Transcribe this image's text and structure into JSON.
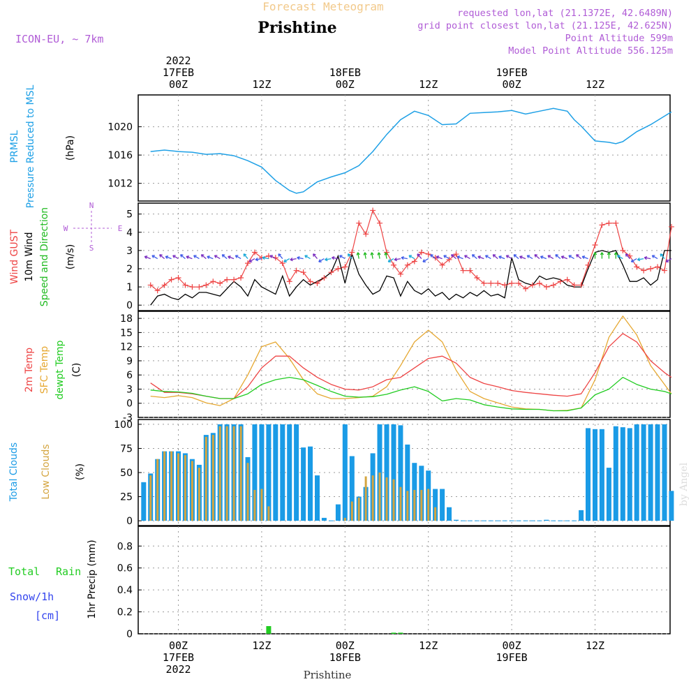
{
  "header": {
    "subtitle": "Forecast Meteogram",
    "title": "Prishtine",
    "model": "ICON-EU, ~ 7km",
    "requested": "requested lon,lat (21.1372E, 42.6489N)",
    "grid_point": "grid point closest lon,lat (21.125E, 42.625N)",
    "point_alt": "Point Altitude 599m",
    "model_alt": "Model Point Altitude 556.125m",
    "watermark": "by Angel"
  },
  "time_axis": {
    "top_labels": [
      {
        "h": 0,
        "lines": [
          "2022",
          "17FEB",
          "00Z"
        ]
      },
      {
        "h": 12,
        "lines": [
          "12Z"
        ]
      },
      {
        "h": 24,
        "lines": [
          "18FEB",
          "00Z"
        ]
      },
      {
        "h": 36,
        "lines": [
          "12Z"
        ]
      },
      {
        "h": 48,
        "lines": [
          "19FEB",
          "00Z"
        ]
      },
      {
        "h": 60,
        "lines": [
          "12Z"
        ]
      }
    ],
    "bottom_labels": [
      {
        "h": 0,
        "lines": [
          "00Z",
          "17FEB",
          "2022"
        ]
      },
      {
        "h": 12,
        "lines": [
          "12Z"
        ]
      },
      {
        "h": 24,
        "lines": [
          "00Z",
          "18FEB"
        ]
      },
      {
        "h": 36,
        "lines": [
          "12Z"
        ]
      },
      {
        "h": 48,
        "lines": [
          "00Z",
          "19FEB"
        ]
      },
      {
        "h": 60,
        "lines": [
          "12Z"
        ]
      }
    ],
    "footer": "Prishtine"
  },
  "colors": {
    "pressure": "#1ea0e6",
    "gust": "#ee4444",
    "wind": "#000000",
    "direction": "#22bb22",
    "temp2m": "#ee4444",
    "sfc": "#e6a832",
    "dewpt": "#22cc22",
    "total_clouds": "#1a9be6",
    "low_clouds": "#d4a540",
    "rain": "#22cc22",
    "snow": "#3344ee",
    "axis_purple": "#b05cd6"
  },
  "panels": {
    "pressure": {
      "labels": [
        "PRMSL",
        "Pressure Reduced to MSL"
      ],
      "unit": "(hPa)"
    },
    "wind": {
      "labels": [
        "Wind GUST",
        "10m Wind",
        "Speed and Direction"
      ],
      "unit": "(m/s)",
      "compass": {
        "n": "N",
        "s": "S",
        "w": "W",
        "e": "E"
      }
    },
    "temp": {
      "labels": [
        "2m Temp",
        "SFC Temp",
        "dewpt Temp"
      ],
      "unit": "(C)"
    },
    "clouds": {
      "labels": [
        "Total Clouds",
        "Low Clouds"
      ],
      "unit": "(%)"
    },
    "precip": {
      "labels": [
        "Total",
        "Rain",
        "Snow/1h",
        "[cm]"
      ],
      "unit": "1hr Precip (mm)"
    }
  },
  "chart_data": [
    {
      "type": "line",
      "title": "PRMSL Pressure Reduced to MSL",
      "ylabel": "(hPa)",
      "ylim": [
        1009.5,
        1024.5
      ],
      "yticks": [
        1012,
        1016,
        1020
      ],
      "x": [
        -4,
        -2,
        0,
        2,
        4,
        6,
        8,
        10,
        12,
        14,
        16,
        17,
        18,
        20,
        22,
        24,
        26,
        28,
        30,
        32,
        34,
        36,
        38,
        40,
        42,
        44,
        46,
        48,
        50,
        52,
        54,
        56,
        57,
        58,
        60,
        62,
        63,
        64,
        66,
        68,
        70,
        71
      ],
      "series": [
        {
          "name": "PRMSL",
          "values": [
            1016.5,
            1016.7,
            1016.5,
            1016.4,
            1016.1,
            1016.2,
            1015.9,
            1015.2,
            1014.3,
            1012.4,
            1011.0,
            1010.6,
            1010.8,
            1012.2,
            1012.9,
            1013.5,
            1014.5,
            1016.5,
            1018.9,
            1021.0,
            1022.2,
            1021.6,
            1020.3,
            1020.4,
            1021.9,
            1022.0,
            1022.1,
            1022.3,
            1021.8,
            1022.2,
            1022.6,
            1022.2,
            1021.0,
            1020.1,
            1018.0,
            1017.8,
            1017.6,
            1017.9,
            1019.3,
            1020.3,
            1021.5,
            1022.1
          ]
        }
      ]
    },
    {
      "type": "line",
      "title": "Wind GUST, 10m Wind Speed and Direction",
      "ylabel": "(m/s)",
      "ylim": [
        -0.3,
        5.6
      ],
      "yticks": [
        0,
        1,
        2,
        3,
        4,
        5
      ],
      "x": [
        -4,
        -3,
        -2,
        -1,
        0,
        1,
        2,
        3,
        4,
        5,
        6,
        7,
        8,
        9,
        10,
        11,
        12,
        13,
        14,
        15,
        16,
        17,
        18,
        19,
        20,
        21,
        22,
        23,
        24,
        25,
        26,
        27,
        28,
        29,
        30,
        31,
        32,
        33,
        34,
        35,
        36,
        37,
        38,
        39,
        40,
        41,
        42,
        43,
        44,
        45,
        46,
        47,
        48,
        49,
        50,
        51,
        52,
        53,
        54,
        55,
        56,
        57,
        58,
        59,
        60,
        61,
        62,
        63,
        64,
        65,
        66,
        67,
        68,
        69,
        70,
        71
      ],
      "series": [
        {
          "name": "Wind GUST",
          "values": [
            1.1,
            0.8,
            1.1,
            1.4,
            1.5,
            1.1,
            1.0,
            1.0,
            1.1,
            1.3,
            1.2,
            1.4,
            1.4,
            1.5,
            2.3,
            2.9,
            2.6,
            2.7,
            2.6,
            2.3,
            1.3,
            1.9,
            1.8,
            1.3,
            1.2,
            1.5,
            1.8,
            2.0,
            2.1,
            2.9,
            4.5,
            3.9,
            5.2,
            4.5,
            2.9,
            2.2,
            1.7,
            2.2,
            2.4,
            2.9,
            2.8,
            2.6,
            2.2,
            2.5,
            2.8,
            1.9,
            1.9,
            1.5,
            1.2,
            1.2,
            1.2,
            1.1,
            1.2,
            1.2,
            0.9,
            1.1,
            1.2,
            1.0,
            1.1,
            1.3,
            1.4,
            1.1,
            1.1,
            2.2,
            3.3,
            4.4,
            4.5,
            4.5,
            3.0,
            2.7,
            2.1,
            1.9,
            2.0,
            2.1,
            1.9,
            4.3
          ]
        },
        {
          "name": "10m Wind",
          "values": [
            0.0,
            0.5,
            0.6,
            0.4,
            0.3,
            0.6,
            0.4,
            0.7,
            0.7,
            0.6,
            0.5,
            0.9,
            1.3,
            1.0,
            0.5,
            1.4,
            1.0,
            0.8,
            0.6,
            1.6,
            0.5,
            1.0,
            1.4,
            1.1,
            1.3,
            1.5,
            1.8,
            2.7,
            1.2,
            2.8,
            1.7,
            1.1,
            0.6,
            0.8,
            1.6,
            1.5,
            0.5,
            1.3,
            0.8,
            0.6,
            0.9,
            0.5,
            0.7,
            0.3,
            0.6,
            0.4,
            0.7,
            0.5,
            0.8,
            0.5,
            0.6,
            0.4,
            2.6,
            1.4,
            1.2,
            1.1,
            1.6,
            1.4,
            1.5,
            1.4,
            1.1,
            1.0,
            1.0,
            2.0,
            2.9,
            3.0,
            2.9,
            3.0,
            2.2,
            1.3,
            1.3,
            1.5,
            1.1,
            1.4,
            3.0,
            3.0
          ]
        }
      ]
    },
    {
      "type": "line",
      "title": "2m Temp, SFC Temp, dewpt Temp",
      "ylabel": "(C)",
      "ylim": [
        -3,
        19.5
      ],
      "yticks": [
        -3,
        0,
        3,
        6,
        9,
        12,
        15,
        18
      ],
      "x": [
        -4,
        -2,
        0,
        2,
        4,
        6,
        8,
        10,
        12,
        14,
        16,
        18,
        20,
        22,
        24,
        26,
        28,
        30,
        32,
        34,
        36,
        38,
        40,
        42,
        44,
        46,
        48,
        50,
        52,
        54,
        56,
        58,
        60,
        62,
        64,
        66,
        68,
        70,
        71
      ],
      "series": [
        {
          "name": "2m Temp",
          "values": [
            4.3,
            2.3,
            2.3,
            2.0,
            1.5,
            1.0,
            1.0,
            3.5,
            7.5,
            10.0,
            10.0,
            7.5,
            5.5,
            4.0,
            3.0,
            2.8,
            3.5,
            5.0,
            5.5,
            7.5,
            9.5,
            10.0,
            8.5,
            5.5,
            4.2,
            3.5,
            2.7,
            2.3,
            2.0,
            1.7,
            1.5,
            2.0,
            6.5,
            12.0,
            14.8,
            13.0,
            9.0,
            6.5,
            5.5
          ]
        },
        {
          "name": "SFC Temp",
          "values": [
            1.5,
            1.2,
            1.6,
            1.2,
            0.1,
            -0.5,
            1.0,
            6.0,
            12.0,
            13.0,
            9.5,
            5.0,
            2.0,
            1.0,
            1.0,
            1.2,
            1.5,
            3.5,
            8.0,
            13.0,
            15.5,
            13.0,
            7.0,
            2.5,
            1.0,
            0.1,
            -0.8,
            -1.2,
            -1.3,
            -1.6,
            -1.5,
            -1.0,
            5.0,
            14.0,
            18.5,
            14.5,
            8.0,
            4.0,
            2.0
          ]
        },
        {
          "name": "dewpt Temp",
          "values": [
            2.8,
            2.5,
            2.4,
            2.1,
            1.5,
            1.0,
            1.0,
            2.0,
            4.0,
            5.0,
            5.5,
            5.0,
            3.8,
            2.5,
            1.5,
            1.3,
            1.4,
            1.9,
            2.8,
            3.5,
            2.5,
            0.5,
            1.0,
            0.7,
            -0.3,
            -0.8,
            -1.2,
            -1.3,
            -1.3,
            -1.6,
            -1.6,
            -1.0,
            1.8,
            3.0,
            5.5,
            4.0,
            3.0,
            2.5,
            2.0
          ]
        }
      ]
    },
    {
      "type": "bar",
      "title": "Total Clouds, Low Clouds",
      "ylabel": "(%)",
      "ylim": [
        -5,
        105
      ],
      "yticks": [
        0,
        25,
        50,
        75,
        100
      ],
      "x": [
        -5,
        -4,
        -3,
        -2,
        -1,
        0,
        1,
        2,
        3,
        4,
        5,
        6,
        7,
        8,
        9,
        10,
        11,
        12,
        13,
        14,
        15,
        16,
        17,
        18,
        19,
        20,
        21,
        22,
        23,
        24,
        25,
        26,
        27,
        28,
        29,
        30,
        31,
        32,
        33,
        34,
        35,
        36,
        37,
        38,
        39,
        40,
        41,
        42,
        43,
        44,
        45,
        46,
        47,
        48,
        49,
        50,
        51,
        52,
        53,
        54,
        55,
        56,
        57,
        58,
        59,
        60,
        61,
        62,
        63,
        64,
        65,
        66,
        67,
        68,
        69,
        70,
        71
      ],
      "series": [
        {
          "name": "Total Clouds",
          "values": [
            40,
            49,
            64,
            72,
            72,
            72,
            70,
            64,
            58,
            89,
            91,
            100,
            100,
            100,
            100,
            66,
            100,
            100,
            100,
            100,
            100,
            100,
            100,
            76,
            77,
            47,
            3,
            0,
            17,
            100,
            67,
            25,
            35,
            70,
            100,
            100,
            100,
            99,
            79,
            60,
            57,
            52,
            33,
            33,
            14,
            1,
            0,
            0,
            0,
            0,
            0,
            0,
            0,
            0,
            0,
            0,
            0,
            0,
            1,
            0,
            0,
            0,
            0,
            11,
            96,
            95,
            95,
            55,
            98,
            97,
            96,
            100,
            100,
            100,
            100,
            100,
            31
          ]
        },
        {
          "name": "Low Clouds",
          "values": [
            0,
            47,
            64,
            72,
            72,
            70,
            68,
            62,
            55,
            87,
            89,
            98,
            98,
            98,
            98,
            60,
            32,
            33,
            15,
            0,
            0,
            0,
            0,
            0,
            0,
            0,
            0,
            0,
            0,
            3,
            20,
            24,
            46,
            47,
            50,
            45,
            43,
            35,
            31,
            32,
            32,
            33,
            14,
            0,
            0,
            0,
            0,
            0,
            0,
            0,
            0,
            0,
            0,
            0,
            0,
            0,
            0,
            0,
            0,
            0,
            0,
            0,
            0,
            0,
            0,
            0,
            0,
            0,
            0,
            0,
            0,
            0,
            0,
            0,
            0,
            0,
            0
          ]
        }
      ]
    },
    {
      "type": "bar",
      "title": "1hr Precip (mm)",
      "ylabel": "1hr Precip (mm)",
      "ylim": [
        0,
        0.98
      ],
      "yticks": [
        0,
        0.2,
        0.4,
        0.6,
        0.8
      ],
      "x": [
        13,
        31,
        32
      ],
      "series": [
        {
          "name": "Total Rain",
          "values": [
            0.07,
            0.01,
            0.01
          ]
        }
      ]
    }
  ]
}
